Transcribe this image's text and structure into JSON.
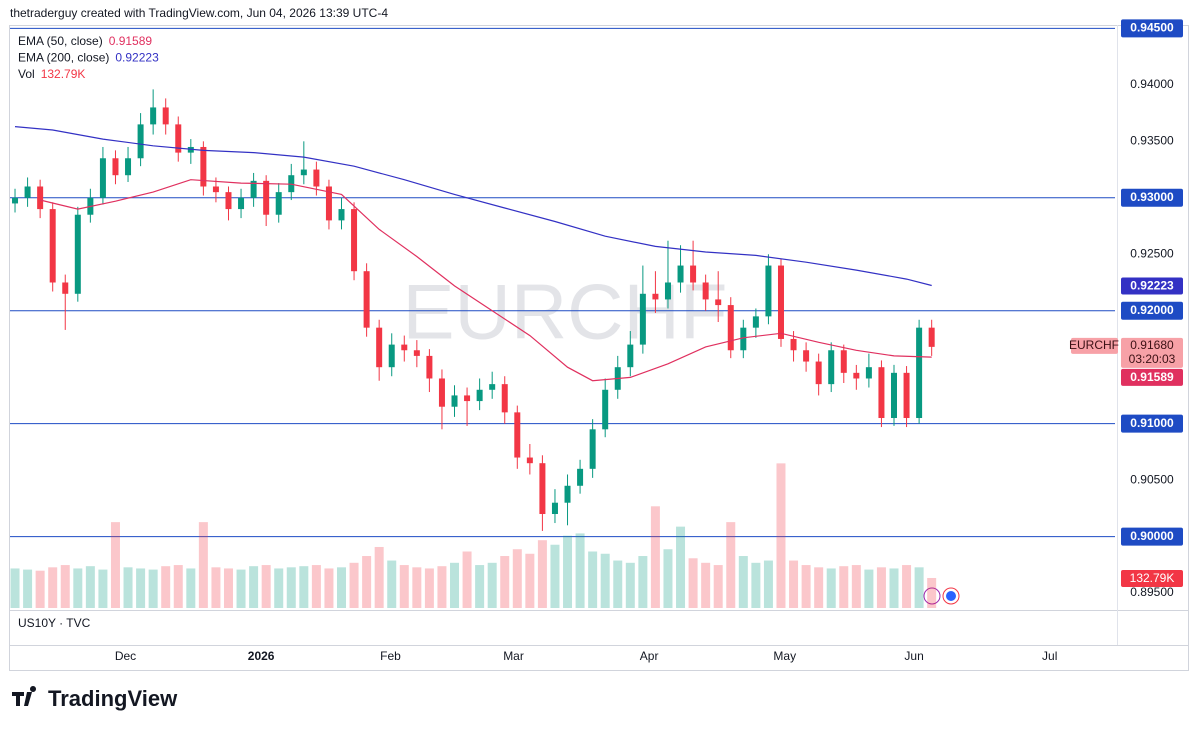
{
  "header": {
    "attribution": "thetraderguy created with TradingView.com, Jun 04, 2026 13:39 UTC-4"
  },
  "chart_data": {
    "type": "candlestick",
    "symbol": "EURCHF",
    "up_color": "#089981",
    "down_color": "#f23645",
    "open": [
      0.9295,
      0.93,
      0.931,
      0.929,
      0.9225,
      0.9215,
      0.9285,
      0.93,
      0.9335,
      0.932,
      0.9335,
      0.9365,
      0.938,
      0.9365,
      0.934,
      0.9345,
      0.931,
      0.9305,
      0.929,
      0.93,
      0.9315,
      0.9285,
      0.9305,
      0.932,
      0.9325,
      0.931,
      0.928,
      0.929,
      0.9235,
      0.9185,
      0.915,
      0.917,
      0.9165,
      0.916,
      0.914,
      0.9115,
      0.9125,
      0.912,
      0.913,
      0.9135,
      0.911,
      0.907,
      0.9065,
      0.902,
      0.903,
      0.9045,
      0.906,
      0.9095,
      0.913,
      0.915,
      0.917,
      0.9215,
      0.921,
      0.9225,
      0.924,
      0.9225,
      0.921,
      0.9205,
      0.9165,
      0.9185,
      0.9195,
      0.924,
      0.9175,
      0.9165,
      0.9155,
      0.9135,
      0.9165,
      0.9145,
      0.914,
      0.915,
      0.9105,
      0.9145,
      0.9105,
      0.9185
    ],
    "high": [
      0.9308,
      0.9318,
      0.9316,
      0.9296,
      0.9232,
      0.9292,
      0.9308,
      0.9345,
      0.9342,
      0.9345,
      0.9375,
      0.9396,
      0.9388,
      0.9372,
      0.9352,
      0.935,
      0.9318,
      0.931,
      0.9308,
      0.9322,
      0.932,
      0.9313,
      0.933,
      0.935,
      0.9332,
      0.9316,
      0.93,
      0.9296,
      0.9242,
      0.9192,
      0.918,
      0.9178,
      0.9174,
      0.9166,
      0.9148,
      0.9134,
      0.9132,
      0.914,
      0.9146,
      0.9142,
      0.9116,
      0.9082,
      0.9072,
      0.9042,
      0.9055,
      0.9068,
      0.9104,
      0.914,
      0.916,
      0.9182,
      0.924,
      0.9235,
      0.9262,
      0.9258,
      0.9262,
      0.9232,
      0.9235,
      0.9212,
      0.9192,
      0.9202,
      0.925,
      0.9246,
      0.9182,
      0.9172,
      0.9162,
      0.9172,
      0.917,
      0.9152,
      0.9162,
      0.9156,
      0.9152,
      0.9151,
      0.9192,
      0.9192
    ],
    "low": [
      0.9287,
      0.9292,
      0.9282,
      0.9217,
      0.9183,
      0.9208,
      0.9278,
      0.9294,
      0.9312,
      0.9314,
      0.9328,
      0.9356,
      0.9356,
      0.9332,
      0.933,
      0.9302,
      0.9296,
      0.928,
      0.9282,
      0.9292,
      0.9275,
      0.9278,
      0.9298,
      0.9312,
      0.9302,
      0.9272,
      0.9272,
      0.9227,
      0.9177,
      0.9138,
      0.9142,
      0.9155,
      0.915,
      0.9128,
      0.9095,
      0.9106,
      0.9098,
      0.9112,
      0.9122,
      0.91,
      0.906,
      0.9055,
      0.9005,
      0.9012,
      0.901,
      0.9038,
      0.9052,
      0.9088,
      0.9122,
      0.9142,
      0.9162,
      0.9198,
      0.9202,
      0.9216,
      0.9218,
      0.92,
      0.919,
      0.9158,
      0.9158,
      0.9176,
      0.9188,
      0.9168,
      0.9155,
      0.9146,
      0.9125,
      0.9128,
      0.9136,
      0.913,
      0.9132,
      0.9097,
      0.9098,
      0.9097,
      0.91,
      0.916
    ],
    "close": [
      0.93,
      0.931,
      0.929,
      0.9225,
      0.9215,
      0.9285,
      0.93,
      0.9335,
      0.932,
      0.9335,
      0.9365,
      0.938,
      0.9365,
      0.934,
      0.9345,
      0.931,
      0.9305,
      0.929,
      0.93,
      0.9315,
      0.9285,
      0.9305,
      0.932,
      0.9325,
      0.931,
      0.928,
      0.929,
      0.9235,
      0.9185,
      0.915,
      0.917,
      0.9165,
      0.916,
      0.914,
      0.9115,
      0.9125,
      0.912,
      0.913,
      0.9135,
      0.911,
      0.907,
      0.9065,
      0.902,
      0.903,
      0.9045,
      0.906,
      0.9095,
      0.913,
      0.915,
      0.917,
      0.9215,
      0.921,
      0.9225,
      0.924,
      0.9225,
      0.921,
      0.9205,
      0.9165,
      0.9185,
      0.9195,
      0.924,
      0.9175,
      0.9165,
      0.9155,
      0.9135,
      0.9165,
      0.9145,
      0.914,
      0.915,
      0.9105,
      0.9145,
      0.9105,
      0.9185,
      0.9168
    ],
    "last_price_label": "0.91680",
    "countdown": "03:20:03",
    "ylim": [
      0.8935,
      0.9453
    ],
    "yticks": [
      {
        "value": 0.945,
        "label": "0.94500"
      },
      {
        "value": 0.94,
        "label": "0.94000"
      },
      {
        "value": 0.935,
        "label": "0.93500"
      },
      {
        "value": 0.93,
        "label": "0.93000"
      },
      {
        "value": 0.925,
        "label": "0.92500"
      },
      {
        "value": 0.92,
        "label": "0.92000"
      },
      {
        "value": 0.91,
        "label": "0.91000"
      },
      {
        "value": 0.905,
        "label": "0.90500"
      },
      {
        "value": 0.9,
        "label": "0.90000"
      },
      {
        "value": 0.895,
        "label": "0.89500"
      }
    ],
    "hlines": [
      0.945,
      0.93,
      0.92,
      0.91,
      0.9
    ],
    "hline_color": "#1e4bc4",
    "xlim": [
      -0.4,
      87.6
    ],
    "xticks": [
      {
        "value": 8.8,
        "label": "Dec"
      },
      {
        "value": 19.6,
        "label": "2026"
      },
      {
        "value": 29.9,
        "label": "Feb"
      },
      {
        "value": 39.7,
        "label": "Mar"
      },
      {
        "value": 50.5,
        "label": "Apr"
      },
      {
        "value": 61.3,
        "label": "May"
      },
      {
        "value": 71.6,
        "label": "Jun"
      },
      {
        "value": 82.4,
        "label": "Jul"
      }
    ],
    "overlays": [
      {
        "name": "EMA (50, close)",
        "color": "#e0305f",
        "last_label": "0.91589",
        "x": [
          2,
          5,
          8,
          11,
          14,
          18,
          22,
          26,
          29,
          32,
          35,
          38,
          41,
          44,
          46,
          49,
          52,
          55,
          58,
          61,
          64,
          67,
          70,
          73
        ],
        "values": [
          0.9298,
          0.929,
          0.9297,
          0.9305,
          0.9316,
          0.9313,
          0.9312,
          0.9303,
          0.9272,
          0.9248,
          0.9222,
          0.92,
          0.9178,
          0.915,
          0.9138,
          0.9141,
          0.9153,
          0.9168,
          0.9176,
          0.918,
          0.9172,
          0.9165,
          0.916,
          0.91589
        ]
      },
      {
        "name": "EMA (200, close)",
        "color": "#3331c4",
        "last_label": "0.92223",
        "x": [
          0,
          3,
          7,
          11,
          15,
          19,
          23,
          27,
          31,
          35,
          39,
          43,
          47,
          51,
          55,
          59,
          63,
          67,
          71,
          73
        ],
        "values": [
          0.9363,
          0.936,
          0.9352,
          0.9346,
          0.9342,
          0.934,
          0.9336,
          0.9328,
          0.9316,
          0.9303,
          0.9291,
          0.9279,
          0.9266,
          0.9257,
          0.9252,
          0.9249,
          0.9243,
          0.9236,
          0.9228,
          0.92223
        ]
      }
    ],
    "volume": {
      "name": "Vol",
      "last_label": "132.79K",
      "values": [
        175000,
        170000,
        165000,
        180000,
        190000,
        175000,
        185000,
        170000,
        380000,
        180000,
        175000,
        170000,
        185000,
        190000,
        175000,
        380000,
        180000,
        175000,
        170000,
        185000,
        190000,
        175000,
        180000,
        185000,
        190000,
        175000,
        180000,
        200000,
        230000,
        270000,
        210000,
        190000,
        180000,
        175000,
        185000,
        200000,
        250000,
        190000,
        200000,
        230000,
        260000,
        240000,
        300000,
        280000,
        320000,
        330000,
        250000,
        240000,
        210000,
        200000,
        230000,
        450000,
        260000,
        360000,
        220000,
        200000,
        190000,
        380000,
        230000,
        200000,
        210000,
        640000,
        210000,
        190000,
        180000,
        175000,
        185000,
        190000,
        170000,
        180000,
        175000,
        190000,
        180000,
        132790
      ]
    },
    "subpane": "US10Y · TVC"
  },
  "branding": "TradingView"
}
